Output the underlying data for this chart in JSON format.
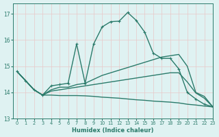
{
  "background_color": "#dff2f2",
  "grid_color": "#c0e0e0",
  "line_color": "#2a7a6a",
  "xlabel": "Humidex (Indice chaleur)",
  "xlim": [
    -0.5,
    23
  ],
  "ylim": [
    13.0,
    17.4
  ],
  "yticks": [
    13,
    14,
    15,
    16,
    17
  ],
  "xticks": [
    0,
    1,
    2,
    3,
    4,
    5,
    6,
    7,
    8,
    9,
    10,
    11,
    12,
    13,
    14,
    15,
    16,
    17,
    18,
    19,
    20,
    21,
    22,
    23
  ],
  "curve1_x": [
    0,
    1,
    2,
    3,
    4,
    5,
    6,
    7,
    8,
    9,
    10,
    11,
    12,
    13,
    14,
    15,
    16,
    17,
    18,
    19,
    20,
    21,
    22,
    23
  ],
  "curve1_y": [
    14.8,
    14.45,
    14.1,
    13.9,
    14.25,
    14.3,
    14.35,
    15.85,
    14.35,
    15.85,
    16.5,
    16.7,
    16.72,
    17.05,
    16.75,
    16.3,
    15.5,
    15.3,
    15.3,
    14.9,
    14.0,
    13.75,
    13.55,
    13.45
  ],
  "curve2_x": [
    0,
    1,
    2,
    3,
    4,
    5,
    6,
    7,
    8,
    9,
    10,
    11,
    12,
    13,
    14,
    15,
    16,
    17,
    18,
    19,
    20,
    21,
    22,
    23
  ],
  "curve2_y": [
    14.8,
    14.45,
    14.1,
    13.9,
    14.1,
    14.2,
    14.2,
    14.3,
    14.35,
    14.5,
    14.65,
    14.75,
    14.85,
    14.95,
    15.05,
    15.15,
    15.25,
    15.35,
    15.4,
    15.45,
    15.0,
    14.0,
    13.85,
    13.45
  ],
  "curve3_x": [
    0,
    1,
    2,
    3,
    4,
    5,
    6,
    7,
    8,
    9,
    10,
    11,
    12,
    13,
    14,
    15,
    16,
    17,
    18,
    19,
    20,
    21,
    22,
    23
  ],
  "curve3_y": [
    14.8,
    14.45,
    14.1,
    13.9,
    14.05,
    14.1,
    14.15,
    14.2,
    14.25,
    14.3,
    14.35,
    14.4,
    14.45,
    14.5,
    14.55,
    14.6,
    14.65,
    14.7,
    14.75,
    14.75,
    14.4,
    13.98,
    13.78,
    13.45
  ],
  "curve4_x": [
    0,
    1,
    2,
    3,
    4,
    5,
    6,
    7,
    8,
    9,
    10,
    11,
    12,
    13,
    14,
    15,
    16,
    17,
    18,
    19,
    20,
    21,
    22,
    23
  ],
  "curve4_y": [
    14.8,
    14.45,
    14.1,
    13.9,
    13.9,
    13.88,
    13.88,
    13.88,
    13.87,
    13.85,
    13.82,
    13.8,
    13.78,
    13.75,
    13.72,
    13.7,
    13.67,
    13.65,
    13.63,
    13.6,
    13.55,
    13.52,
    13.48,
    13.45
  ],
  "linewidth": 1.0,
  "markersize": 3.5
}
